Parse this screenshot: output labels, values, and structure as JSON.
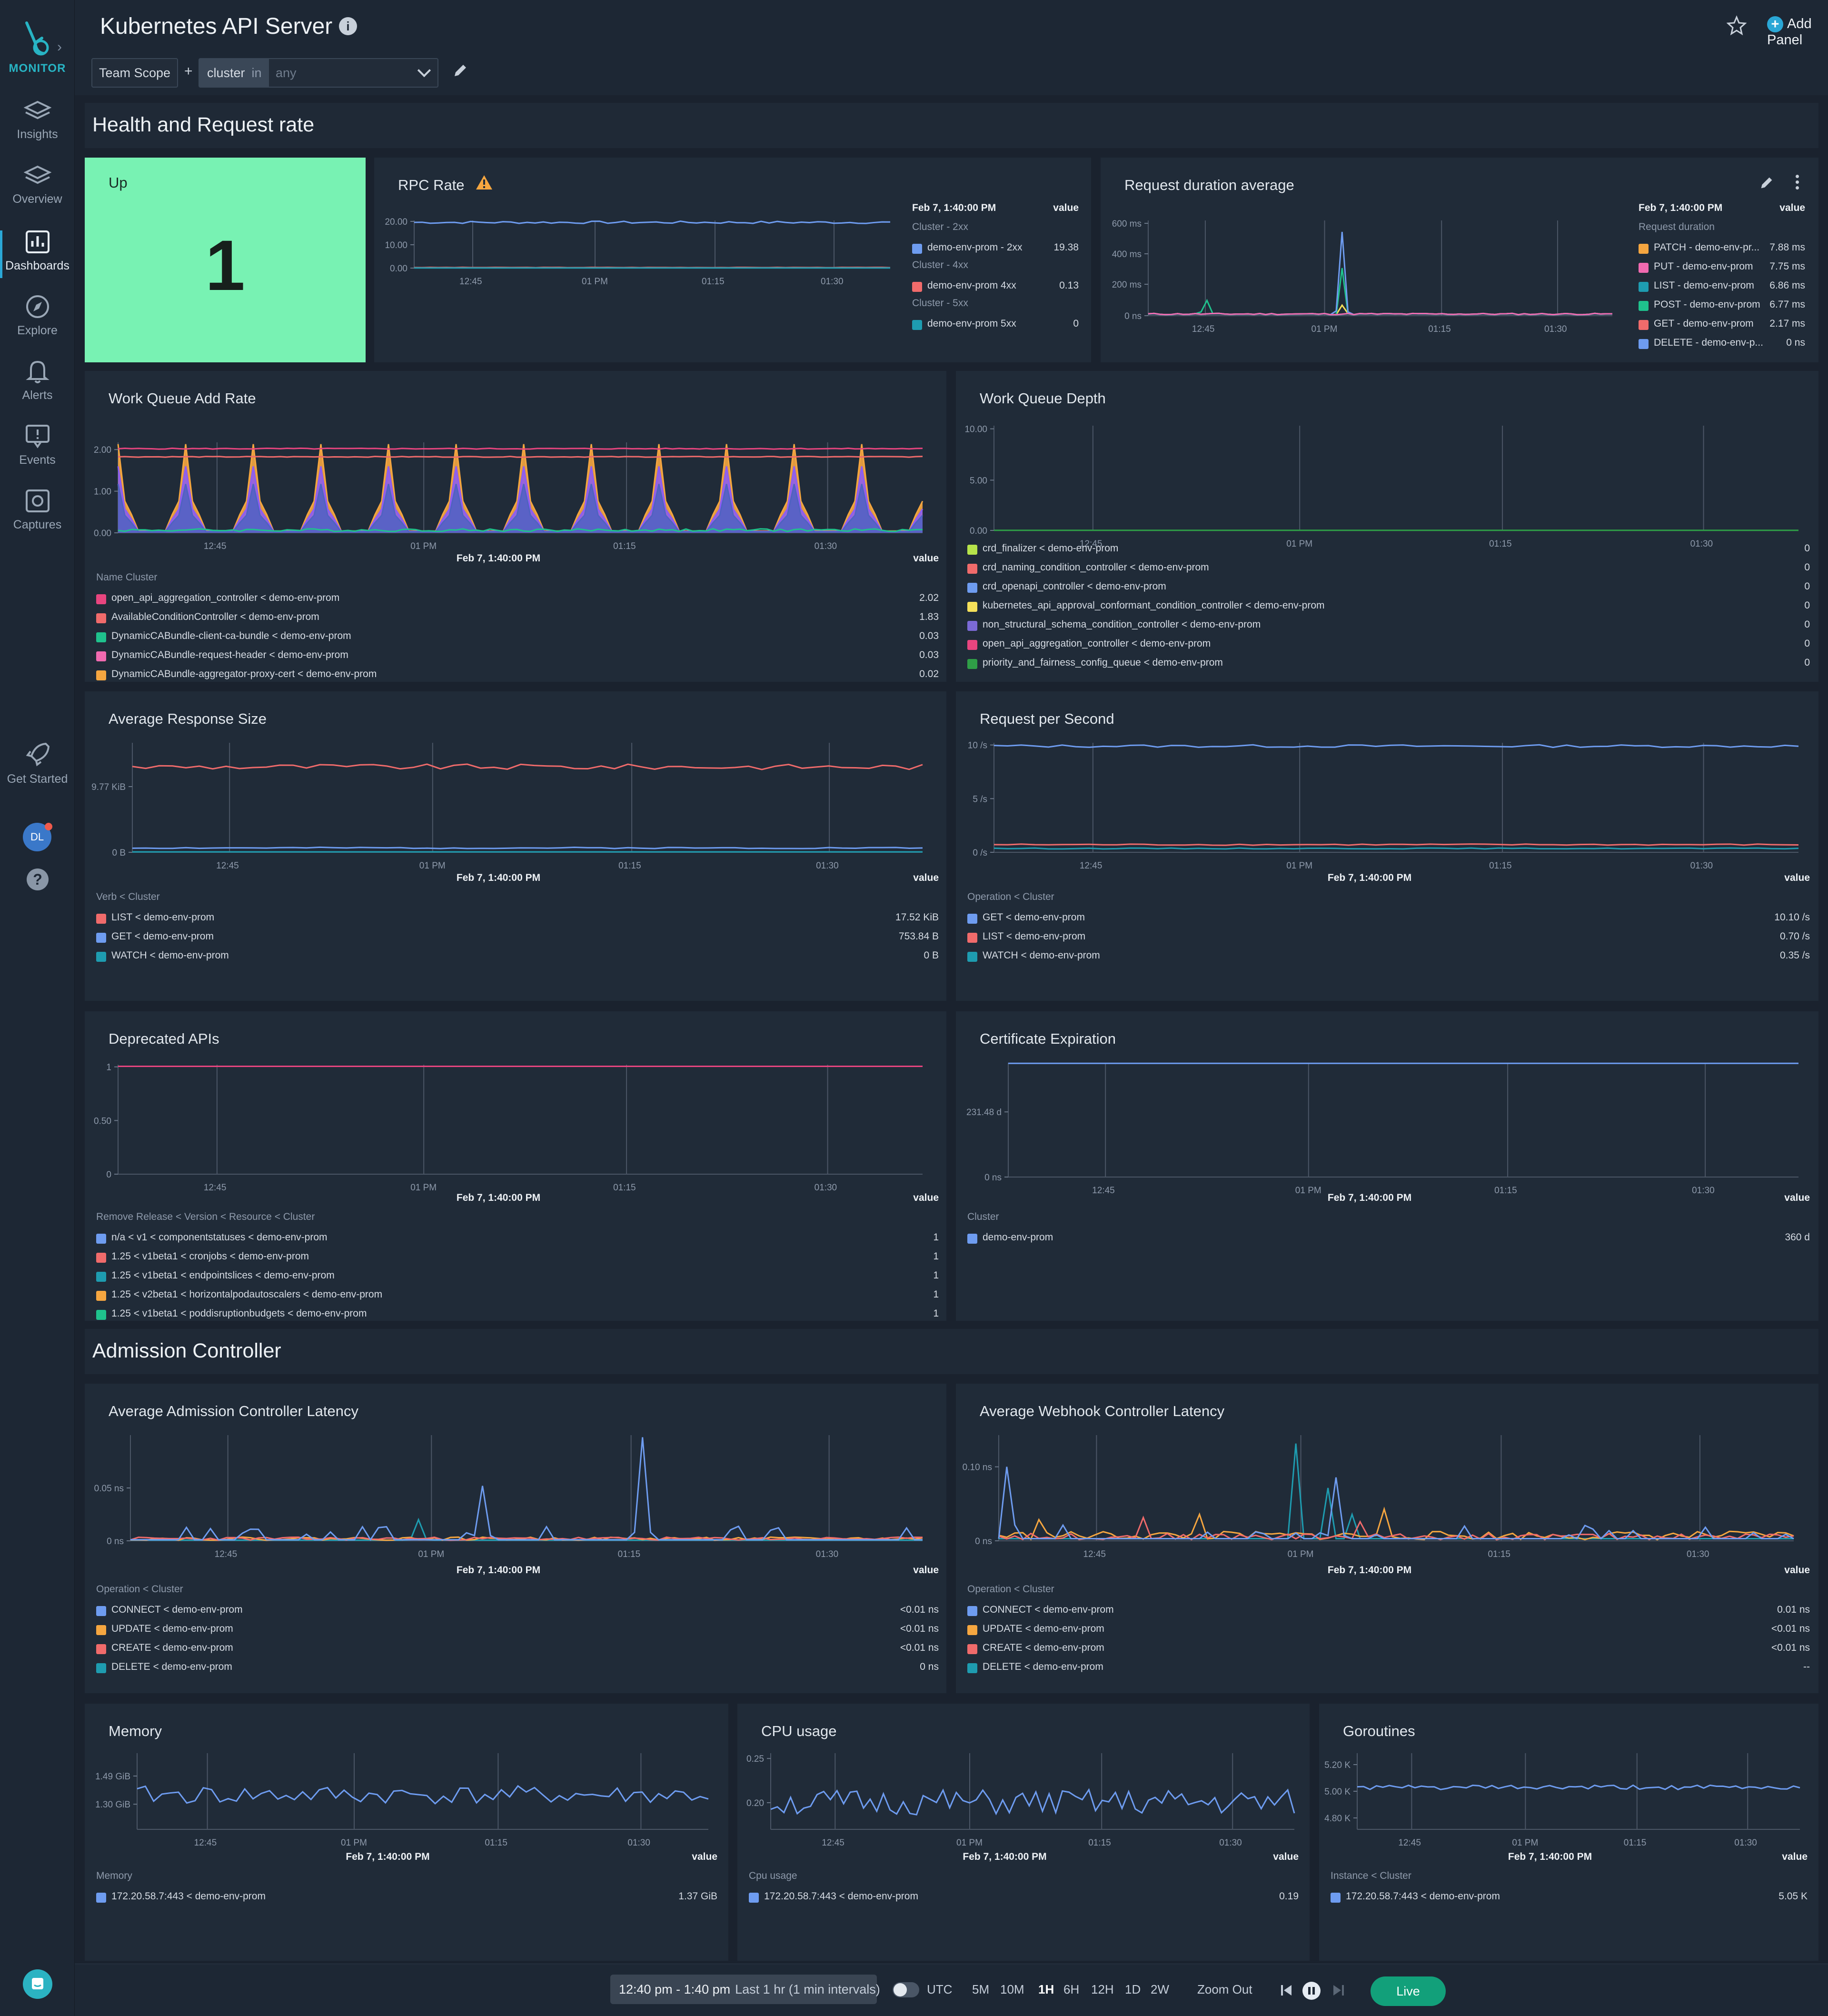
{
  "sidebar": {
    "brand": "MONITOR",
    "items": [
      "Insights",
      "Overview",
      "Dashboards",
      "Explore",
      "Alerts",
      "Events",
      "Captures"
    ],
    "get_started": "Get Started",
    "avatar": "DL"
  },
  "header": {
    "title": "Kubernetes API Server",
    "scope": "Team Scope",
    "filter_key": "cluster",
    "filter_op": "in",
    "filter_value": "any",
    "add_panel": "Add Panel"
  },
  "sections": {
    "health": "Health and Request rate",
    "admission": "Admission Controller"
  },
  "ts": "Feb 7, 1:40:00 PM",
  "value": "value",
  "up": {
    "title": "Up",
    "value": "1"
  },
  "rpc": {
    "title": "RPC Rate",
    "yticks": [
      "20.00",
      "10.00",
      "0.00"
    ],
    "xticks": [
      "12:45",
      "01 PM",
      "01:15",
      "01:30"
    ],
    "groups": [
      "Cluster - 2xx",
      "Cluster - 4xx",
      "Cluster - 5xx"
    ],
    "rows": [
      {
        "label": "demo-env-prom - 2xx",
        "value": "19.38",
        "color": "#6e9cf0"
      },
      {
        "label": "demo-env-prom 4xx",
        "value": "0.13",
        "color": "#f06b6b"
      },
      {
        "label": "demo-env-prom 5xx",
        "value": "0",
        "color": "#1e9cb0"
      }
    ]
  },
  "rda": {
    "title": "Request duration average",
    "yticks": [
      "600 ms",
      "400 ms",
      "200 ms",
      "0 ns"
    ],
    "xticks": [
      "12:45",
      "01 PM",
      "01:15",
      "01:30"
    ],
    "group": "Request duration",
    "rows": [
      {
        "label": "PATCH - demo-env-pr...",
        "value": "7.88 ms",
        "color": "#f5a640"
      },
      {
        "label": "PUT - demo-env-prom",
        "value": "7.75 ms",
        "color": "#f06ab0"
      },
      {
        "label": "LIST - demo-env-prom",
        "value": "6.86 ms",
        "color": "#1e9cb0"
      },
      {
        "label": "POST - demo-env-prom",
        "value": "6.77 ms",
        "color": "#1fc28d"
      },
      {
        "label": "GET - demo-env-prom",
        "value": "2.17 ms",
        "color": "#f06b6b"
      },
      {
        "label": "DELETE - demo-env-p...",
        "value": "0 ns",
        "color": "#6e9cf0"
      }
    ]
  },
  "wqa": {
    "title": "Work Queue Add Rate",
    "yticks": [
      "2.00",
      "1.00",
      "0.00"
    ],
    "xticks": [
      "12:45",
      "01 PM",
      "01:15",
      "01:30"
    ],
    "group": "Name Cluster",
    "rows": [
      {
        "label": "open_api_aggregation_controller < demo-env-prom",
        "value": "2.02",
        "color": "#e8457f"
      },
      {
        "label": "AvailableConditionController < demo-env-prom",
        "value": "1.83",
        "color": "#f06b6b"
      },
      {
        "label": "DynamicCABundle-client-ca-bundle < demo-env-prom",
        "value": "0.03",
        "color": "#1fc28d"
      },
      {
        "label": "DynamicCABundle-request-header < demo-env-prom",
        "value": "0.03",
        "color": "#f06ab0"
      },
      {
        "label": "DynamicCABundle-aggregator-proxy-cert < demo-env-prom",
        "value": "0.02",
        "color": "#f5a640"
      }
    ]
  },
  "wqd": {
    "title": "Work Queue Depth",
    "yticks": [
      "10.00",
      "5.00",
      "0.00"
    ],
    "xticks": [
      "12:45",
      "01 PM",
      "01:15",
      "01:30"
    ],
    "rows": [
      {
        "label": "crd_finalizer < demo-env-prom",
        "value": "0",
        "color": "#b6e34a"
      },
      {
        "label": "crd_naming_condition_controller < demo-env-prom",
        "value": "0",
        "color": "#f06b6b"
      },
      {
        "label": "crd_openapi_controller < demo-env-prom",
        "value": "0",
        "color": "#6e9cf0"
      },
      {
        "label": "kubernetes_api_approval_conformant_condition_controller < demo-env-prom",
        "value": "0",
        "color": "#f5e05a"
      },
      {
        "label": "non_structural_schema_condition_controller < demo-env-prom",
        "value": "0",
        "color": "#7b6ad6"
      },
      {
        "label": "open_api_aggregation_controller < demo-env-prom",
        "value": "0",
        "color": "#e8457f"
      },
      {
        "label": "priority_and_fairness_config_queue < demo-env-prom",
        "value": "0",
        "color": "#2f9e47"
      }
    ]
  },
  "ars": {
    "title": "Average Response Size",
    "yticks": [
      "9.77 KiB",
      "0 B"
    ],
    "xticks": [
      "12:45",
      "01 PM",
      "01:15",
      "01:30"
    ],
    "group": "Verb < Cluster",
    "rows": [
      {
        "label": "LIST < demo-env-prom",
        "value": "17.52 KiB",
        "color": "#f06b6b"
      },
      {
        "label": "GET < demo-env-prom",
        "value": "753.84 B",
        "color": "#6e9cf0"
      },
      {
        "label": "WATCH < demo-env-prom",
        "value": "0 B",
        "color": "#1e9cb0"
      }
    ]
  },
  "rps": {
    "title": "Request per Second",
    "yticks": [
      "10 /s",
      "5 /s",
      "0 /s"
    ],
    "xticks": [
      "12:45",
      "01 PM",
      "01:15",
      "01:30"
    ],
    "group": "Operation < Cluster",
    "rows": [
      {
        "label": "GET < demo-env-prom",
        "value": "10.10 /s",
        "color": "#6e9cf0"
      },
      {
        "label": "LIST < demo-env-prom",
        "value": "0.70 /s",
        "color": "#f06b6b"
      },
      {
        "label": "WATCH < demo-env-prom",
        "value": "0.35 /s",
        "color": "#1e9cb0"
      }
    ]
  },
  "dep": {
    "title": "Deprecated APIs",
    "yticks": [
      "1",
      "0.50",
      "0"
    ],
    "xticks": [
      "12:45",
      "01 PM",
      "01:15",
      "01:30"
    ],
    "group": "Remove Release < Version < Resource < Cluster",
    "rows": [
      {
        "label": "n/a < v1 < componentstatuses < demo-env-prom",
        "value": "1",
        "color": "#6e9cf0"
      },
      {
        "label": "1.25 < v1beta1 < cronjobs < demo-env-prom",
        "value": "1",
        "color": "#f06b6b"
      },
      {
        "label": "1.25 < v1beta1 < endpointslices < demo-env-prom",
        "value": "1",
        "color": "#1e9cb0"
      },
      {
        "label": "1.25 < v2beta1 < horizontalpodautoscalers < demo-env-prom",
        "value": "1",
        "color": "#f5a640"
      },
      {
        "label": "1.25 < v1beta1 < poddisruptionbudgets < demo-env-prom",
        "value": "1",
        "color": "#1fc28d"
      }
    ]
  },
  "cert": {
    "title": "Certificate Expiration",
    "yticks": [
      "231.48 d",
      "0 ns"
    ],
    "xticks": [
      "12:45",
      "01 PM",
      "01:15",
      "01:30"
    ],
    "group": "Cluster",
    "rows": [
      {
        "label": "demo-env-prom",
        "value": "360 d",
        "color": "#6e9cf0"
      }
    ]
  },
  "aacl": {
    "title": "Average Admission Controller Latency",
    "yticks": [
      "0.05 ns",
      "0 ns"
    ],
    "xticks": [
      "12:45",
      "01 PM",
      "01:15",
      "01:30"
    ],
    "group": "Operation < Cluster",
    "rows": [
      {
        "label": "CONNECT < demo-env-prom",
        "value": "<0.01 ns",
        "color": "#6e9cf0"
      },
      {
        "label": "UPDATE < demo-env-prom",
        "value": "<0.01 ns",
        "color": "#f5a640"
      },
      {
        "label": "CREATE < demo-env-prom",
        "value": "<0.01 ns",
        "color": "#f06b6b"
      },
      {
        "label": "DELETE < demo-env-prom",
        "value": "0 ns",
        "color": "#1e9cb0"
      }
    ]
  },
  "awcl": {
    "title": "Average Webhook Controller Latency",
    "yticks": [
      "0.10 ns",
      "0 ns"
    ],
    "xticks": [
      "12:45",
      "01 PM",
      "01:15",
      "01:30"
    ],
    "group": "Operation < Cluster",
    "rows": [
      {
        "label": "CONNECT < demo-env-prom",
        "value": "0.01 ns",
        "color": "#6e9cf0"
      },
      {
        "label": "UPDATE < demo-env-prom",
        "value": "<0.01 ns",
        "color": "#f5a640"
      },
      {
        "label": "CREATE < demo-env-prom",
        "value": "<0.01 ns",
        "color": "#f06b6b"
      },
      {
        "label": "DELETE < demo-env-prom",
        "value": "--",
        "color": "#1e9cb0"
      }
    ]
  },
  "mem": {
    "title": "Memory",
    "yticks": [
      "1.49 GiB",
      "1.30 GiB"
    ],
    "xticks": [
      "12:45",
      "01 PM",
      "01:15",
      "01:30"
    ],
    "group": "Memory",
    "rows": [
      {
        "label": "172.20.58.7:443 < demo-env-prom",
        "value": "1.37 GiB",
        "color": "#6e9cf0"
      }
    ]
  },
  "cpu": {
    "title": "CPU usage",
    "yticks": [
      "0.25",
      "0.20"
    ],
    "xticks": [
      "12:45",
      "01 PM",
      "01:15",
      "01:30"
    ],
    "group": "Cpu usage",
    "rows": [
      {
        "label": "172.20.58.7:443 < demo-env-prom",
        "value": "0.19",
        "color": "#6e9cf0"
      }
    ]
  },
  "gor": {
    "title": "Goroutines",
    "yticks": [
      "5.20 K",
      "5.00 K",
      "4.80 K"
    ],
    "xticks": [
      "12:45",
      "01 PM",
      "01:15",
      "01:30"
    ],
    "group": "Instance < Cluster",
    "rows": [
      {
        "label": "172.20.58.7:443 < demo-env-prom",
        "value": "5.05 K",
        "color": "#6e9cf0"
      }
    ]
  },
  "timebar": {
    "range": "12:40 pm - 1:40 pm",
    "range_desc": "Last 1 hr (1 min intervals)",
    "utc": "UTC",
    "buttons": [
      "5M",
      "10M",
      "1H",
      "6H",
      "12H",
      "1D",
      "2W"
    ],
    "selected": "1H",
    "zoom_out": "Zoom Out",
    "live": "Live"
  }
}
